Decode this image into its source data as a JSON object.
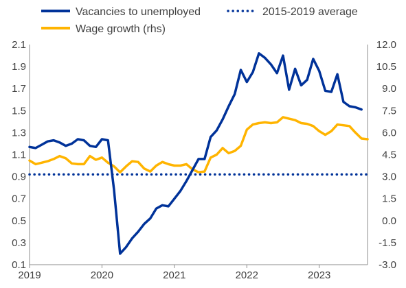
{
  "chart_data": {
    "type": "line",
    "legend": {
      "placement": "top",
      "entries": [
        "Vacancies to unemployed",
        "2015-2019 average",
        "Wage growth (rhs)"
      ]
    },
    "x_axis": {
      "ticks": [
        "2019",
        "2020",
        "2021",
        "2022",
        "2023"
      ],
      "range": [
        "2019-01",
        "2023-09"
      ]
    },
    "y_left": {
      "ylim": [
        0.1,
        2.1
      ],
      "ticks": [
        "0.1",
        "0.3",
        "0.5",
        "0.7",
        "0.9",
        "1.1",
        "1.3",
        "1.5",
        "1.7",
        "1.9",
        "2.1"
      ]
    },
    "y_right": {
      "ylim": [
        -3.0,
        12.0
      ],
      "ticks": [
        "-3.0",
        "-1.5",
        "0.0",
        "1.5",
        "3.0",
        "4.5",
        "6.0",
        "7.5",
        "9.0",
        "10.5",
        "12.0"
      ]
    },
    "grid": false,
    "colors": {
      "vacancies": "#003299",
      "average": "#003299",
      "wage": "#ffb400"
    },
    "series": [
      {
        "name": "Vacancies to unemployed",
        "axis": "left",
        "style": "solid",
        "x": [
          "2019-01",
          "2019-02",
          "2019-03",
          "2019-04",
          "2019-05",
          "2019-06",
          "2019-07",
          "2019-08",
          "2019-09",
          "2019-10",
          "2019-11",
          "2019-12",
          "2020-01",
          "2020-02",
          "2020-03",
          "2020-04",
          "2020-05",
          "2020-06",
          "2020-07",
          "2020-08",
          "2020-09",
          "2020-10",
          "2020-11",
          "2020-12",
          "2021-01",
          "2021-02",
          "2021-03",
          "2021-04",
          "2021-05",
          "2021-06",
          "2021-07",
          "2021-08",
          "2021-09",
          "2021-10",
          "2021-11",
          "2021-12",
          "2022-01",
          "2022-02",
          "2022-03",
          "2022-04",
          "2022-05",
          "2022-06",
          "2022-07",
          "2022-08",
          "2022-09",
          "2022-10",
          "2022-11",
          "2022-12",
          "2023-01",
          "2023-02",
          "2023-03",
          "2023-04",
          "2023-05",
          "2023-06",
          "2023-07",
          "2023-08"
        ],
        "values": [
          1.17,
          1.16,
          1.19,
          1.22,
          1.23,
          1.21,
          1.18,
          1.2,
          1.24,
          1.23,
          1.18,
          1.17,
          1.24,
          1.23,
          0.78,
          0.2,
          0.26,
          0.34,
          0.4,
          0.47,
          0.52,
          0.61,
          0.64,
          0.63,
          0.7,
          0.77,
          0.86,
          0.96,
          1.06,
          1.06,
          1.26,
          1.32,
          1.42,
          1.54,
          1.65,
          1.87,
          1.76,
          1.85,
          2.02,
          1.98,
          1.92,
          1.84,
          2.0,
          1.69,
          1.88,
          1.73,
          1.78,
          1.97,
          1.86,
          1.68,
          1.67,
          1.83,
          1.58,
          1.54,
          1.53,
          1.51
        ]
      },
      {
        "name": "2015-2019 average",
        "axis": "left",
        "style": "dotted",
        "x": [
          "2019-01",
          "2023-09"
        ],
        "values": [
          0.92,
          0.92
        ]
      },
      {
        "name": "Wage growth (rhs)",
        "axis": "right",
        "style": "solid",
        "x": [
          "2019-01",
          "2019-02",
          "2019-03",
          "2019-04",
          "2019-05",
          "2019-06",
          "2019-07",
          "2019-08",
          "2019-09",
          "2019-10",
          "2019-11",
          "2019-12",
          "2020-01",
          "2020-02",
          "2020-03",
          "2020-04",
          "2020-05",
          "2020-06",
          "2020-07",
          "2020-08",
          "2020-09",
          "2020-10",
          "2020-11",
          "2020-12",
          "2021-01",
          "2021-02",
          "2021-03",
          "2021-04",
          "2021-05",
          "2021-06",
          "2021-07",
          "2021-08",
          "2021-09",
          "2021-10",
          "2021-11",
          "2021-12",
          "2022-01",
          "2022-02",
          "2022-03",
          "2022-04",
          "2022-05",
          "2022-06",
          "2022-07",
          "2022-08",
          "2022-09",
          "2022-10",
          "2022-11",
          "2022-12",
          "2023-01",
          "2023-02",
          "2023-03",
          "2023-04",
          "2023-05",
          "2023-06",
          "2023-07",
          "2023-08",
          "2023-09"
        ],
        "values": [
          4.1,
          3.85,
          3.95,
          4.05,
          4.2,
          4.4,
          4.25,
          3.9,
          3.85,
          3.85,
          4.4,
          4.15,
          4.3,
          3.95,
          3.7,
          3.3,
          3.7,
          4.05,
          4.0,
          3.55,
          3.35,
          3.75,
          4.0,
          3.85,
          3.75,
          3.75,
          3.85,
          3.5,
          3.3,
          3.35,
          4.3,
          4.5,
          4.95,
          4.6,
          4.75,
          5.1,
          6.2,
          6.55,
          6.65,
          6.7,
          6.65,
          6.7,
          7.05,
          6.95,
          6.85,
          6.65,
          6.6,
          6.45,
          6.1,
          5.85,
          6.1,
          6.55,
          6.5,
          6.45,
          6.0,
          5.6,
          5.55
        ]
      }
    ]
  }
}
